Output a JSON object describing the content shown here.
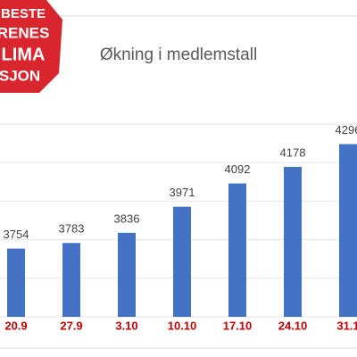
{
  "logo": {
    "lines": [
      "BESTE",
      "RENES",
      "LIMA",
      "SJON"
    ]
  },
  "chart_data": {
    "type": "bar",
    "title": "Økning i medlemstall",
    "categories": [
      "20.9",
      "27.9",
      "3.10",
      "10.10",
      "17.10",
      "24.10",
      "31.1"
    ],
    "values": [
      3754,
      3783,
      3836,
      3971,
      4092,
      4178,
      4296
    ],
    "value_labels": [
      "3754",
      "3783",
      "3836",
      "3971",
      "4092",
      "4178",
      "4296"
    ],
    "color": "#4472c4",
    "category_color": "#c00000",
    "ylim": [
      3400,
      4400
    ],
    "yticks": [
      3400,
      3600,
      3800,
      4000,
      4200,
      4400
    ],
    "grid": true
  }
}
